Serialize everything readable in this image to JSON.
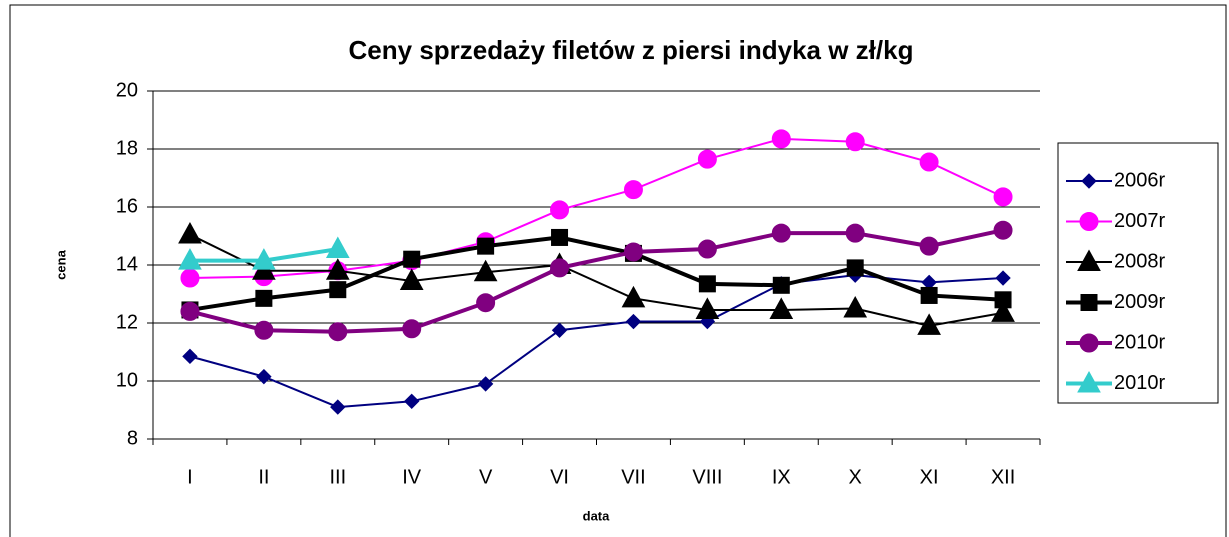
{
  "chart_data": {
    "type": "line",
    "title": "Ceny sprzedaży filetów z  piersi indyka w zł/kg",
    "x_label": "data",
    "y_label": "cena",
    "categories": [
      "I",
      "II",
      "III",
      "IV",
      "V",
      "VI",
      "VII",
      "VIII",
      "IX",
      "X",
      "XI",
      "XII"
    ],
    "ylim": [
      8,
      20
    ],
    "yticks": [
      8,
      10,
      12,
      14,
      16,
      18,
      20
    ],
    "grid": true,
    "legend": "right",
    "series": [
      {
        "name": "2006r",
        "color": "#000080",
        "marker": "diamond",
        "line_width": 2,
        "values": [
          10.85,
          10.15,
          9.1,
          9.3,
          9.9,
          11.75,
          12.05,
          12.05,
          13.35,
          13.65,
          13.4,
          13.55
        ]
      },
      {
        "name": "2007r",
        "color": "#ff00ff",
        "marker": "circle",
        "line_width": 2,
        "values": [
          13.55,
          13.6,
          13.8,
          14.15,
          14.8,
          15.9,
          16.6,
          17.65,
          18.35,
          18.25,
          17.55,
          16.35
        ]
      },
      {
        "name": "2008r",
        "color": "#000000",
        "marker": "triangle",
        "line_width": 2,
        "values": [
          15.05,
          13.8,
          13.8,
          13.45,
          13.75,
          14.0,
          12.85,
          12.45,
          12.45,
          12.5,
          11.9,
          12.35
        ]
      },
      {
        "name": "2009r",
        "color": "#000000",
        "marker": "square",
        "line_width": 4,
        "values": [
          12.45,
          12.85,
          13.15,
          14.2,
          14.65,
          14.95,
          14.4,
          13.35,
          13.3,
          13.9,
          12.95,
          12.8
        ]
      },
      {
        "name": "2010r",
        "color": "#800080",
        "marker": "circle",
        "line_width": 4,
        "values": [
          12.4,
          11.75,
          11.7,
          11.8,
          12.7,
          13.9,
          14.45,
          14.55,
          15.1,
          15.1,
          14.65,
          15.2
        ]
      },
      {
        "name": "2010r",
        "color": "#33cccc",
        "marker": "triangle",
        "line_width": 4,
        "values": [
          14.15,
          14.15,
          14.55,
          null,
          null,
          null,
          null,
          null,
          null,
          null,
          null,
          null
        ]
      }
    ]
  }
}
